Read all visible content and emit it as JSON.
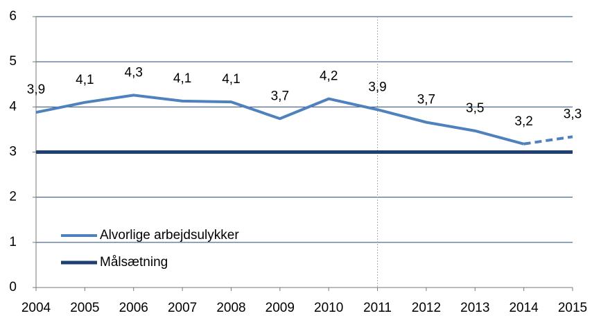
{
  "chart_data": {
    "type": "line",
    "x": [
      2004,
      2005,
      2006,
      2007,
      2008,
      2009,
      2010,
      2011,
      2012,
      2013,
      2014,
      2015
    ],
    "series": [
      {
        "name": "Alvorlige arbejdsulykker",
        "color": "#4f81bd",
        "values": [
          3.88,
          4.1,
          4.26,
          4.13,
          4.11,
          3.74,
          4.18,
          3.94,
          3.66,
          3.47,
          3.18,
          3.34
        ],
        "value_labels": [
          "3,9",
          "4,1",
          "4,3",
          "4,1",
          "4,1",
          "3,7",
          "4,2",
          "3,9",
          "3,7",
          "3,5",
          "3,2",
          "3,3"
        ],
        "dashed_from": 2014
      },
      {
        "name": "Målsætning",
        "color": "#1f3f70",
        "values": [
          3,
          3,
          3,
          3,
          3,
          3,
          3,
          3,
          3,
          3,
          3,
          3
        ]
      }
    ],
    "xlim": [
      2004,
      2015
    ],
    "xticks": [
      2004,
      2005,
      2006,
      2007,
      2008,
      2009,
      2010,
      2011,
      2012,
      2013,
      2014,
      2015
    ],
    "ylim": [
      0,
      6
    ],
    "yticks": [
      0,
      1,
      2,
      3,
      4,
      5,
      6
    ],
    "grid": true,
    "vline": 2011
  }
}
